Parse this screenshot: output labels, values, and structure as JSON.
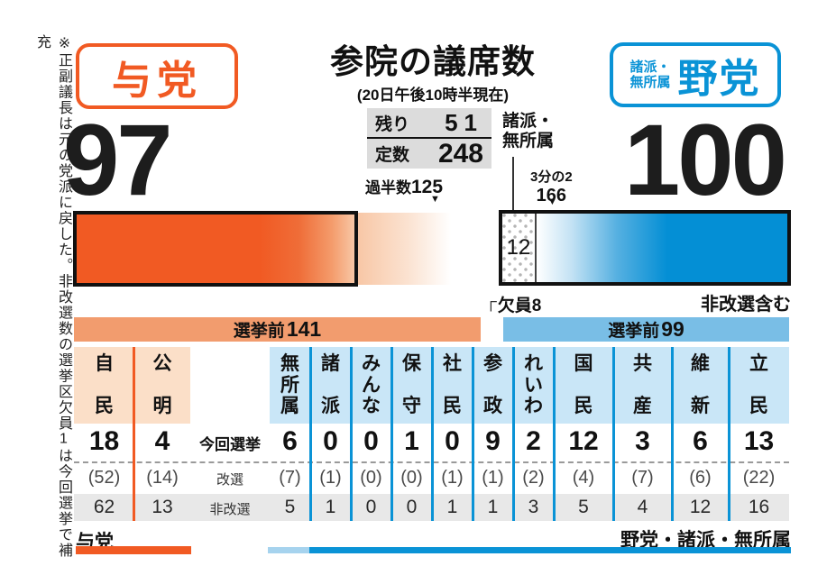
{
  "note": "※正副議長は元の党派に戻した。非改選数の選挙区欠員1は今回選挙で補充",
  "header": {
    "title": "参院の議席数",
    "datetime": "(20日午後10時半現在)"
  },
  "icons": {
    "down_arrow": "▼",
    "corner_bracket": "┌"
  },
  "gauge": {
    "remaining_label": "残り",
    "remaining_value": "51",
    "capacity_label": "定数",
    "capacity_value": "248",
    "majority_label": "過半数",
    "majority_value": "125",
    "two_thirds_label": "3分の2",
    "two_thirds_value": "166"
  },
  "ruling": {
    "badge": "与党",
    "seats": "97",
    "pre_label": "選挙前",
    "pre_value": "141",
    "bottom_label": "与党"
  },
  "opposition": {
    "badge_sub": "諸派・\n無所属",
    "badge": "野党",
    "seats": "100",
    "others_label": "諸派・\n無所属",
    "others_value": "12",
    "vacancy": "欠員8",
    "nonelected_note": "非改選含む",
    "pre_label": "選挙前",
    "pre_value": "99",
    "bottom_label": "野党・諸派・無所属"
  },
  "table": {
    "row_labels": {
      "current": "今回選挙",
      "contested": "改選",
      "uncontested": "非改選"
    },
    "columns": [
      {
        "name": "自民",
        "current": "18",
        "contested": "(52)",
        "uncontested": "62"
      },
      {
        "name": "公明",
        "current": "4",
        "contested": "(14)",
        "uncontested": "13"
      },
      {
        "name": "無所属",
        "current": "6",
        "contested": "(7)",
        "uncontested": "5"
      },
      {
        "name": "諸派",
        "current": "0",
        "contested": "(1)",
        "uncontested": "1"
      },
      {
        "name": "みんな",
        "current": "0",
        "contested": "(0)",
        "uncontested": "0"
      },
      {
        "name": "保守",
        "current": "1",
        "contested": "(0)",
        "uncontested": "0"
      },
      {
        "name": "社民",
        "current": "0",
        "contested": "(1)",
        "uncontested": "1"
      },
      {
        "name": "参政",
        "current": "9",
        "contested": "(1)",
        "uncontested": "1"
      },
      {
        "name": "れいわ",
        "current": "2",
        "contested": "(2)",
        "uncontested": "3"
      },
      {
        "name": "国民",
        "current": "12",
        "contested": "(4)",
        "uncontested": "5"
      },
      {
        "name": "共産",
        "current": "3",
        "contested": "(7)",
        "uncontested": "4"
      },
      {
        "name": "維新",
        "current": "6",
        "contested": "(6)",
        "uncontested": "12"
      },
      {
        "name": "立民",
        "current": "13",
        "contested": "(22)",
        "uncontested": "16"
      }
    ]
  },
  "colors": {
    "orange": "#f15a23",
    "blue": "#048fd5",
    "light_orange_cell": "#fbdfc8",
    "light_blue_cell": "#c9e6f7",
    "band_orange": "#f29c6e",
    "band_blue": "#79bee6",
    "gray_box": "#dcdcdc",
    "gray_row": "#e8e8e8"
  },
  "chart_data": {
    "type": "bar",
    "title": "参院の議席数",
    "subtitle": "(20日午後10時半現在)",
    "totals": {
      "ruling_seats": 97,
      "opposition_seats": 100,
      "remaining": 51,
      "capacity": 248,
      "majority": 125,
      "two_thirds": 166,
      "vacancy": 8,
      "opposition_minor_independent": 12,
      "pre_election_ruling": 141,
      "pre_election_opposition": 99
    },
    "series": [
      {
        "name": "今回選挙",
        "values": [
          18,
          4,
          6,
          0,
          0,
          1,
          0,
          9,
          2,
          12,
          3,
          6,
          13
        ]
      },
      {
        "name": "改選",
        "values": [
          52,
          14,
          7,
          1,
          0,
          0,
          1,
          1,
          2,
          4,
          7,
          6,
          22
        ]
      },
      {
        "name": "非改選",
        "values": [
          62,
          13,
          5,
          1,
          0,
          0,
          1,
          1,
          3,
          5,
          4,
          12,
          16
        ]
      }
    ],
    "categories": [
      "自民",
      "公明",
      "無所属",
      "諸派",
      "みんな",
      "保守",
      "社民",
      "参政",
      "れいわ",
      "国民",
      "共産",
      "維新",
      "立民"
    ],
    "groups": {
      "ruling": [
        "自民",
        "公明"
      ],
      "opposition": [
        "無所属",
        "諸派",
        "みんな",
        "保守",
        "社民",
        "参政",
        "れいわ",
        "国民",
        "共産",
        "維新",
        "立民"
      ]
    }
  }
}
